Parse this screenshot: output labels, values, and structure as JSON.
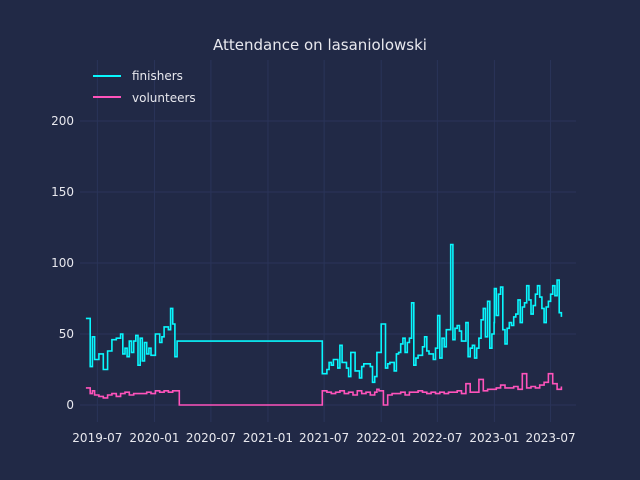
{
  "chart_data": {
    "type": "line",
    "title": "Attendance on lasaniolowski",
    "xlabel": "",
    "ylabel": "",
    "step": true,
    "grid": true,
    "legend_position": "upper-left",
    "colors": {
      "background": "#212946",
      "grid": "#2A3459",
      "text": "#E8E8EE"
    },
    "x_ticks": [
      "2019-07",
      "2020-01",
      "2020-07",
      "2021-01",
      "2021-07",
      "2022-01",
      "2022-07",
      "2023-01",
      "2023-07"
    ],
    "y_ticks": [
      0,
      50,
      100,
      150,
      200
    ],
    "xlim": [
      "2019-05-06",
      "2023-09-21"
    ],
    "ylim": [
      -12,
      243
    ],
    "series": [
      {
        "name": "finishers",
        "color": "#08F7FE",
        "x": [
          "2019-05-25",
          "2019-06-08",
          "2019-06-15",
          "2019-06-22",
          "2019-07-06",
          "2019-07-20",
          "2019-08-03",
          "2019-08-17",
          "2019-08-31",
          "2019-09-14",
          "2019-09-21",
          "2019-09-28",
          "2019-10-05",
          "2019-10-12",
          "2019-10-19",
          "2019-10-26",
          "2019-11-02",
          "2019-11-09",
          "2019-11-16",
          "2019-11-23",
          "2019-11-30",
          "2019-12-07",
          "2019-12-14",
          "2019-12-21",
          "2020-01-04",
          "2020-01-18",
          "2020-01-25",
          "2020-02-01",
          "2020-02-15",
          "2020-02-22",
          "2020-02-29",
          "2020-03-07",
          "2020-03-14",
          "2021-06-25",
          "2021-07-10",
          "2021-07-17",
          "2021-07-24",
          "2021-07-31",
          "2021-08-14",
          "2021-08-21",
          "2021-08-28",
          "2021-09-11",
          "2021-09-18",
          "2021-09-25",
          "2021-10-09",
          "2021-10-23",
          "2021-10-30",
          "2021-11-06",
          "2021-11-13",
          "2021-11-27",
          "2021-12-04",
          "2021-12-11",
          "2021-12-18",
          "2022-01-01",
          "2022-01-15",
          "2022-01-22",
          "2022-01-29",
          "2022-02-12",
          "2022-02-19",
          "2022-02-26",
          "2022-03-05",
          "2022-03-12",
          "2022-03-19",
          "2022-03-26",
          "2022-04-02",
          "2022-04-09",
          "2022-04-16",
          "2022-04-23",
          "2022-04-30",
          "2022-05-14",
          "2022-05-21",
          "2022-05-28",
          "2022-06-04",
          "2022-06-18",
          "2022-06-25",
          "2022-07-02",
          "2022-07-09",
          "2022-07-16",
          "2022-07-23",
          "2022-07-30",
          "2022-08-13",
          "2022-08-20",
          "2022-08-27",
          "2022-09-03",
          "2022-09-10",
          "2022-09-17",
          "2022-10-01",
          "2022-10-08",
          "2022-10-15",
          "2022-10-22",
          "2022-10-29",
          "2022-11-05",
          "2022-11-12",
          "2022-11-19",
          "2022-11-26",
          "2022-12-03",
          "2022-12-10",
          "2022-12-17",
          "2022-12-24",
          "2022-12-31",
          "2023-01-01",
          "2023-01-07",
          "2023-01-14",
          "2023-01-21",
          "2023-01-28",
          "2023-02-04",
          "2023-02-11",
          "2023-02-18",
          "2023-02-25",
          "2023-03-04",
          "2023-03-11",
          "2023-03-18",
          "2023-03-25",
          "2023-04-01",
          "2023-04-08",
          "2023-04-15",
          "2023-04-22",
          "2023-04-29",
          "2023-05-06",
          "2023-05-13",
          "2023-05-20",
          "2023-05-27",
          "2023-06-03",
          "2023-06-10",
          "2023-06-17",
          "2023-06-24",
          "2023-07-01",
          "2023-07-08",
          "2023-07-15",
          "2023-07-22",
          "2023-07-29",
          "2023-08-05"
        ],
        "values": [
          61,
          27,
          48,
          32,
          36,
          25,
          38,
          46,
          47,
          50,
          36,
          40,
          34,
          45,
          37,
          45,
          49,
          28,
          47,
          31,
          44,
          36,
          40,
          35,
          50,
          44,
          48,
          55,
          53,
          68,
          57,
          34,
          45,
          22,
          25,
          30,
          28,
          32,
          26,
          42,
          30,
          26,
          20,
          37,
          24,
          19,
          27,
          29,
          29,
          27,
          16,
          20,
          37,
          57,
          26,
          29,
          30,
          24,
          36,
          37,
          43,
          47,
          37,
          44,
          47,
          72,
          28,
          33,
          35,
          41,
          48,
          38,
          36,
          32,
          40,
          63,
          33,
          47,
          41,
          53,
          113,
          46,
          54,
          56,
          52,
          45,
          58,
          34,
          40,
          42,
          33,
          40,
          47,
          60,
          68,
          48,
          73,
          40,
          50,
          58,
          82,
          63,
          78,
          83,
          53,
          43,
          54,
          58,
          56,
          62,
          64,
          74,
          58,
          69,
          72,
          84,
          74,
          64,
          70,
          78,
          84,
          76,
          68,
          58,
          69,
          73,
          78,
          84,
          77,
          88,
          65,
          62
        ],
        "note": "plotted as steps; start at 2021-06-25 after a gap at zero"
      },
      {
        "name": "volunteers",
        "color": "#FE53BB",
        "x": [
          "2019-05-25",
          "2019-06-08",
          "2019-06-15",
          "2019-06-22",
          "2019-07-06",
          "2019-07-20",
          "2019-08-03",
          "2019-08-17",
          "2019-08-31",
          "2019-09-14",
          "2019-09-28",
          "2019-10-12",
          "2019-10-26",
          "2019-11-09",
          "2019-11-23",
          "2019-12-07",
          "2019-12-21",
          "2020-01-04",
          "2020-01-18",
          "2020-02-01",
          "2020-02-15",
          "2020-02-29",
          "2020-03-14",
          "2020-03-21",
          "2021-06-25",
          "2021-07-10",
          "2021-07-24",
          "2021-08-07",
          "2021-08-21",
          "2021-09-04",
          "2021-09-18",
          "2021-10-02",
          "2021-10-16",
          "2021-10-30",
          "2021-11-13",
          "2021-11-27",
          "2021-12-11",
          "2021-12-18",
          "2021-12-25",
          "2022-01-08",
          "2022-01-22",
          "2022-02-05",
          "2022-02-19",
          "2022-03-05",
          "2022-03-19",
          "2022-04-02",
          "2022-04-16",
          "2022-04-30",
          "2022-05-14",
          "2022-05-28",
          "2022-06-11",
          "2022-06-25",
          "2022-07-09",
          "2022-07-23",
          "2022-08-06",
          "2022-08-20",
          "2022-09-03",
          "2022-09-17",
          "2022-10-01",
          "2022-10-15",
          "2022-10-29",
          "2022-11-12",
          "2022-11-26",
          "2022-12-10",
          "2022-12-24",
          "2023-01-07",
          "2023-01-21",
          "2023-02-04",
          "2023-02-18",
          "2023-03-04",
          "2023-03-18",
          "2023-04-01",
          "2023-04-15",
          "2023-04-29",
          "2023-05-13",
          "2023-05-27",
          "2023-06-10",
          "2023-06-24",
          "2023-07-08",
          "2023-07-22",
          "2023-08-05"
        ],
        "values": [
          12,
          8,
          10,
          7,
          6,
          5,
          7,
          8,
          6,
          8,
          9,
          7,
          8,
          8,
          8,
          9,
          8,
          10,
          9,
          10,
          9,
          10,
          10,
          0,
          10,
          9,
          8,
          9,
          10,
          8,
          9,
          7,
          10,
          8,
          9,
          7,
          9,
          11,
          10,
          0,
          7,
          8,
          8,
          9,
          7,
          9,
          9,
          10,
          9,
          8,
          9,
          8,
          9,
          8,
          9,
          9,
          10,
          8,
          15,
          9,
          9,
          18,
          10,
          11,
          11,
          12,
          14,
          12,
          12,
          13,
          11,
          22,
          12,
          13,
          12,
          14,
          16,
          22,
          15,
          11,
          13
        ],
        "note": "plotted as steps"
      }
    ]
  }
}
